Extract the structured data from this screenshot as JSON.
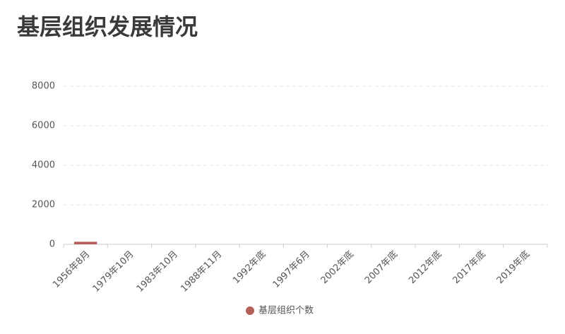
{
  "chart_data": {
    "type": "bar",
    "title": "基层组织发展情况",
    "categories": [
      "1956年8月",
      "1979年10月",
      "1983年10月",
      "1988年11月",
      "1992年底",
      "1997年6月",
      "2002年底",
      "2007年底",
      "2012年底",
      "2017年底",
      "2019年底"
    ],
    "series": [
      {
        "name": "基层组织个数",
        "color": "#b5615b",
        "values": [
          130,
          0,
          0,
          0,
          0,
          0,
          0,
          0,
          0,
          0,
          0
        ]
      }
    ],
    "ylim": [
      0,
      8000
    ],
    "yticks": [
      0,
      2000,
      4000,
      6000,
      8000
    ],
    "grid": true,
    "legend": "bottom"
  }
}
